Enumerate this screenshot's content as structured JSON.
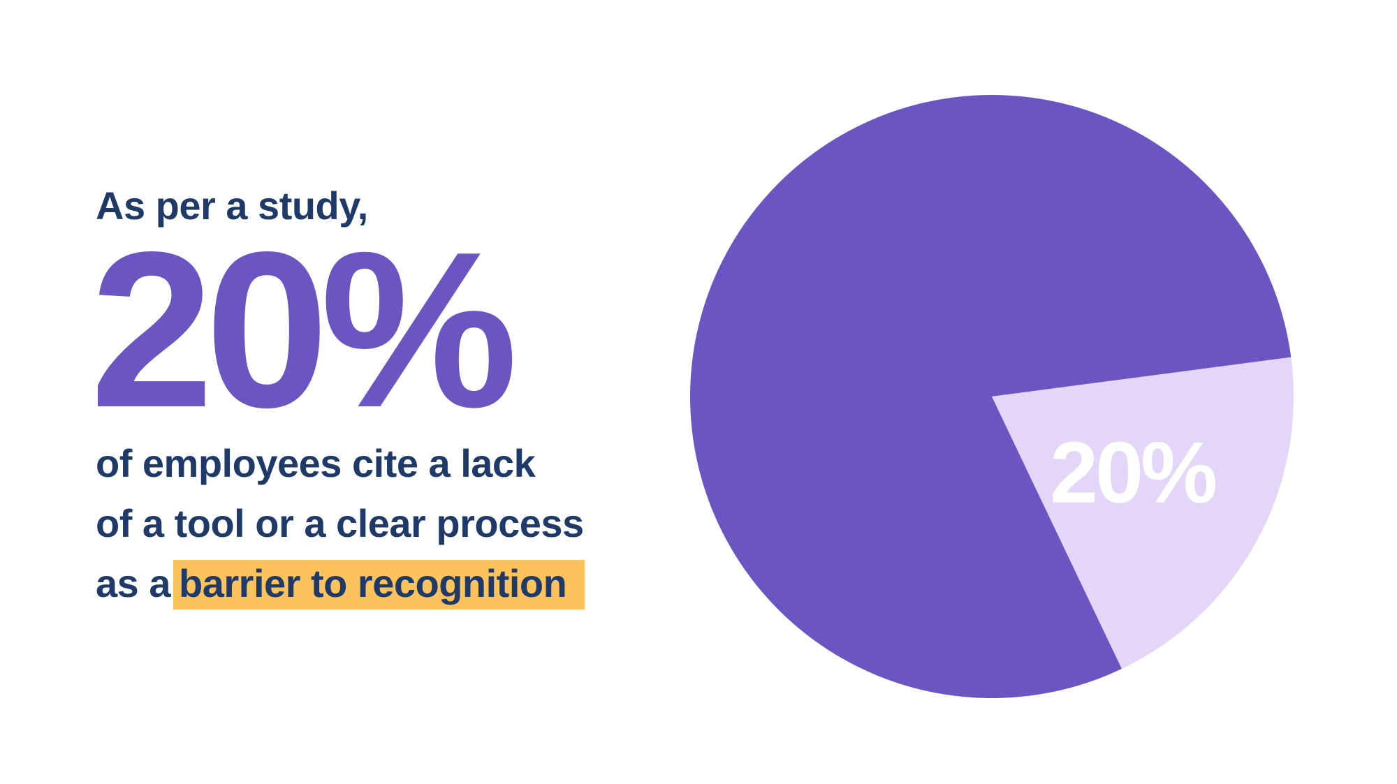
{
  "headline": {
    "intro": "As per a study,",
    "stat": "20%",
    "lines": [
      "of employees cite a lack",
      "of a tool or a clear process"
    ],
    "last_line_prefix": "as a",
    "last_line_highlight": "barrier to recognition"
  },
  "colors": {
    "text_dark": "#1f3a68",
    "accent_purple": "#6a55c3",
    "slice_light": "#e3d6f8",
    "highlight": "#fcc35c",
    "slice_label": "#ffffff"
  },
  "chart_data": {
    "type": "pie",
    "slices": [
      {
        "value": 80,
        "color": "#6a55c3",
        "label": ""
      },
      {
        "value": 20,
        "color": "#e3d6f8",
        "label": "20%"
      }
    ],
    "title": "",
    "legend": "none"
  }
}
